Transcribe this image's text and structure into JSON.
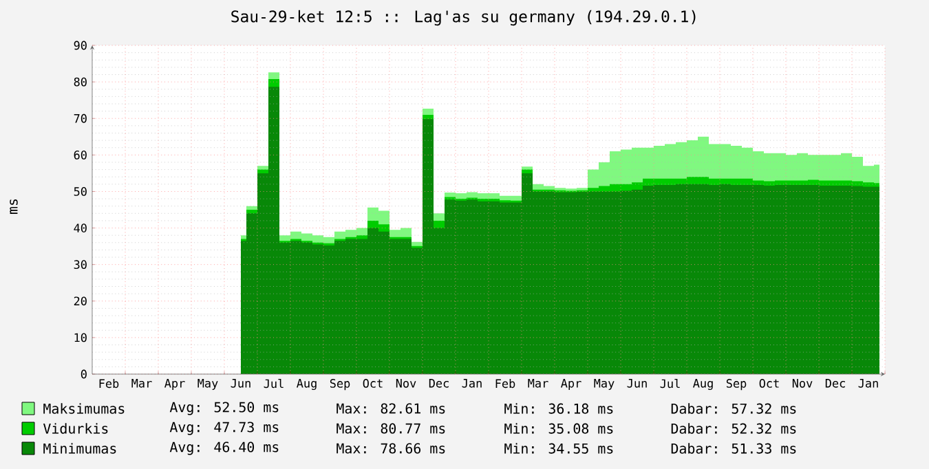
{
  "chart_data": {
    "type": "area",
    "title": "Sau-29-ket 12:5 :: Lag'as su germany (194.29.0.1)",
    "ylabel": "ms",
    "categories": [
      null,
      "Feb",
      null,
      null,
      "Mar",
      null,
      null,
      "Apr",
      null,
      null,
      "May",
      null,
      null,
      "Jun",
      null,
      null,
      "Jul",
      null,
      null,
      "Aug",
      null,
      null,
      "Sep",
      null,
      null,
      "Oct",
      null,
      null,
      "Nov",
      null,
      null,
      "Dec",
      null,
      null,
      "Jan",
      null,
      null,
      "Feb",
      null,
      null,
      "Mar",
      null,
      null,
      "Apr",
      null,
      null,
      "May",
      null,
      null,
      "Jun",
      null,
      null,
      "Jul",
      null,
      null,
      "Aug",
      null,
      null,
      "Sep",
      null,
      null,
      "Oct",
      null,
      null,
      "Nov",
      null,
      null,
      "Dec",
      null,
      null,
      "Jan",
      null
    ],
    "series": [
      {
        "name": "Maksimumas",
        "color": "#80f880",
        "values": [
          null,
          null,
          null,
          null,
          null,
          null,
          null,
          null,
          null,
          null,
          null,
          null,
          null,
          38,
          46,
          57,
          82.61,
          38,
          39,
          38.5,
          38,
          37.5,
          39,
          39.5,
          40,
          45.6,
          44.7,
          39.5,
          40,
          36.18,
          72.7,
          44,
          49.7,
          49.5,
          49.8,
          49.5,
          49.5,
          48.8,
          48.8,
          56.8,
          52,
          51.5,
          51,
          50.8,
          51,
          56,
          58,
          61,
          61.5,
          62,
          62,
          62.5,
          63,
          63.5,
          64,
          65,
          63,
          63,
          62.5,
          62,
          61,
          60.5,
          60.5,
          60,
          60.5,
          60,
          60,
          60,
          60.5,
          59.5,
          57,
          57.32
        ]
      },
      {
        "name": "Vidurkis",
        "color": "#00cc00",
        "values": [
          null,
          null,
          null,
          null,
          null,
          null,
          null,
          null,
          null,
          null,
          null,
          null,
          null,
          37,
          45,
          56,
          80.77,
          36.5,
          37,
          36.5,
          36,
          35.8,
          37,
          37.5,
          38,
          42,
          41,
          37.5,
          37.5,
          35.08,
          71,
          42,
          48.5,
          48,
          48.3,
          48,
          48,
          47.6,
          47.5,
          56,
          50.5,
          50.5,
          50.3,
          50.2,
          50.3,
          51,
          51.5,
          52,
          52,
          52.5,
          53.5,
          53.5,
          53.5,
          53.5,
          54,
          54,
          53.5,
          53.5,
          53.5,
          53.5,
          53,
          52.8,
          53,
          53,
          53,
          53.2,
          53,
          53,
          53,
          52.8,
          52.5,
          52.32
        ]
      },
      {
        "name": "Minimumas",
        "color": "#088808",
        "values": [
          null,
          null,
          null,
          null,
          null,
          null,
          null,
          null,
          null,
          null,
          null,
          null,
          null,
          36.5,
          44,
          55,
          78.66,
          36,
          36.5,
          36,
          35.5,
          35.2,
          36.5,
          37,
          37,
          40,
          39,
          37,
          37,
          34.55,
          69.8,
          40,
          47.8,
          47.5,
          47.8,
          47.3,
          47.3,
          47,
          47,
          55,
          50,
          50,
          49.8,
          49.8,
          49.9,
          50,
          50,
          50,
          50.2,
          50.5,
          51.6,
          51.8,
          51.8,
          52,
          52,
          52,
          51.8,
          52,
          51.8,
          51.8,
          51.8,
          51.6,
          51.8,
          51.8,
          51.8,
          51.8,
          51.6,
          51.6,
          51.6,
          51.5,
          51.3,
          51.33
        ]
      }
    ],
    "ylim": [
      0,
      90
    ],
    "yticks": [
      0,
      10,
      20,
      30,
      40,
      50,
      60,
      70,
      80,
      90
    ],
    "grid": true,
    "legend": "bottom",
    "annotations": [
      "Avg: 52.50 ms",
      "Max: 82.61 ms",
      "Min: 36.18 ms",
      "Dabar: 57.32 ms",
      "Avg: 47.73 ms",
      "Max: 80.77 ms",
      "Min: 35.08 ms",
      "Dabar: 52.32 ms",
      "Avg: 46.40 ms",
      "Max: 78.66 ms",
      "Min: 34.55 ms",
      "Dabar: 51.33 ms"
    ]
  }
}
